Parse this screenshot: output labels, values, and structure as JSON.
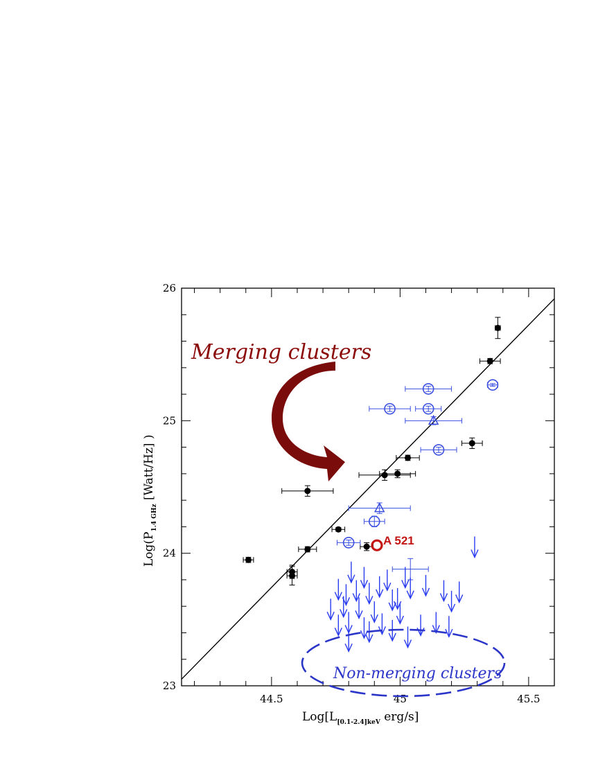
{
  "chart_data": {
    "type": "scatter",
    "xlabel_main": "Log[L",
    "xlabel_sub": "[0.1-2.4]keV",
    "xlabel_tail": " erg/s]",
    "ylabel_main": "Log(P",
    "ylabel_sub": "1.4 GHz",
    "ylabel_tail": " [Watt/Hz] )",
    "xlim": [
      44.15,
      45.6
    ],
    "ylim": [
      23,
      26
    ],
    "xticks": [
      44.5,
      45,
      45.5
    ],
    "xtick_labels": [
      "44.5",
      "45",
      "45.5"
    ],
    "yticks": [
      23,
      24,
      25,
      26
    ],
    "ytick_labels": [
      "23",
      "24",
      "25",
      "26"
    ],
    "fit_line": {
      "x": [
        44.15,
        45.6
      ],
      "y": [
        23.05,
        25.92
      ]
    },
    "annotations": {
      "merging": "Merging clusters",
      "nonmerging": "Non-merging clusters",
      "a521": "A 521"
    },
    "colors": {
      "halo": "#000000",
      "relic": "#3a4fe0",
      "upper_limit": "#2a3cf0",
      "merging_text": "#8b0a0a",
      "arrow": "#7a0c0c",
      "a521": "#c41414"
    },
    "series": [
      {
        "marker": "filled-circle",
        "points": [
          {
            "x": 44.41,
            "y": 23.95,
            "xerr": 0.02,
            "yerr": 0.02
          },
          {
            "x": 44.58,
            "y": 23.86,
            "xerr": 0.02,
            "yerr": 0.05
          },
          {
            "x": 44.58,
            "y": 23.83,
            "xerr": 0.02,
            "yerr": 0.07
          },
          {
            "x": 44.64,
            "y": 24.03,
            "xerr": 0.035,
            "yerr": 0.02
          },
          {
            "x": 44.64,
            "y": 24.47,
            "xerr": 0.1,
            "yerr": 0.04
          },
          {
            "x": 44.76,
            "y": 24.18,
            "xerr": 0.025,
            "yerr": 0.015
          },
          {
            "x": 44.87,
            "y": 24.05,
            "xerr": 0.025,
            "yerr": 0.03
          },
          {
            "x": 44.94,
            "y": 24.59,
            "xerr": 0.1,
            "yerr": 0.04
          },
          {
            "x": 44.99,
            "y": 24.6,
            "xerr": 0.07,
            "yerr": 0.03
          },
          {
            "x": 45.03,
            "y": 24.72,
            "xerr": 0.045,
            "yerr": 0.02
          },
          {
            "x": 45.28,
            "y": 24.83,
            "xerr": 0.04,
            "yerr": 0.04
          },
          {
            "x": 45.35,
            "y": 25.45,
            "xerr": 0.04,
            "yerr": 0.02
          },
          {
            "x": 45.38,
            "y": 25.7,
            "xerr": 0.01,
            "yerr": 0.08
          }
        ]
      },
      {
        "marker": "open-circle",
        "points": [
          {
            "x": 44.96,
            "y": 25.09,
            "xerr": 0.08,
            "yerr": 0.02
          },
          {
            "x": 45.11,
            "y": 25.24,
            "xerr": 0.09,
            "yerr": 0.02
          },
          {
            "x": 45.11,
            "y": 25.09,
            "xerr": 0.05,
            "yerr": 0.02
          },
          {
            "x": 45.15,
            "y": 24.78,
            "xerr": 0.07,
            "yerr": 0.02
          },
          {
            "x": 44.9,
            "y": 24.24,
            "xerr": 0.04,
            "yerr": 0.04
          },
          {
            "x": 44.8,
            "y": 24.08,
            "xerr": 0.045,
            "yerr": 0.02
          },
          {
            "x": 45.36,
            "y": 25.27,
            "xerr": 0.02,
            "yerr": 0.01
          }
        ]
      },
      {
        "marker": "open-triangle",
        "points": [
          {
            "x": 45.13,
            "y": 25.0,
            "xerr": 0.11,
            "yerr": 0.03
          },
          {
            "x": 44.92,
            "y": 24.34,
            "xerr": 0.12,
            "yerr": 0.04
          }
        ]
      },
      {
        "marker": "cross",
        "points": [
          {
            "x": 45.04,
            "y": 23.88,
            "xerr": 0.07,
            "yerr": 0.08
          }
        ]
      },
      {
        "marker": "upper-limit",
        "points": [
          {
            "x": 45.29,
            "y": 23.97
          },
          {
            "x": 44.81,
            "y": 23.78
          },
          {
            "x": 44.86,
            "y": 23.74
          },
          {
            "x": 45.02,
            "y": 23.74
          },
          {
            "x": 44.95,
            "y": 23.72
          },
          {
            "x": 45.1,
            "y": 23.68
          },
          {
            "x": 44.92,
            "y": 23.67
          },
          {
            "x": 44.76,
            "y": 23.65
          },
          {
            "x": 45.04,
            "y": 23.66
          },
          {
            "x": 45.23,
            "y": 23.63
          },
          {
            "x": 44.88,
            "y": 23.62
          },
          {
            "x": 44.83,
            "y": 23.64
          },
          {
            "x": 45.17,
            "y": 23.64
          },
          {
            "x": 44.79,
            "y": 23.61
          },
          {
            "x": 44.99,
            "y": 23.58
          },
          {
            "x": 44.97,
            "y": 23.57
          },
          {
            "x": 45.2,
            "y": 23.56
          },
          {
            "x": 44.78,
            "y": 23.52
          },
          {
            "x": 44.84,
            "y": 23.51
          },
          {
            "x": 44.9,
            "y": 23.48
          },
          {
            "x": 45.0,
            "y": 23.47
          },
          {
            "x": 44.73,
            "y": 23.5
          },
          {
            "x": 45.08,
            "y": 23.38
          },
          {
            "x": 44.8,
            "y": 23.4
          },
          {
            "x": 44.93,
            "y": 23.39
          },
          {
            "x": 45.14,
            "y": 23.4
          },
          {
            "x": 45.19,
            "y": 23.37
          },
          {
            "x": 44.76,
            "y": 23.38
          },
          {
            "x": 44.86,
            "y": 23.36
          },
          {
            "x": 44.88,
            "y": 23.33
          },
          {
            "x": 44.97,
            "y": 23.34
          },
          {
            "x": 45.03,
            "y": 23.29
          },
          {
            "x": 44.8,
            "y": 23.26
          }
        ]
      },
      {
        "marker": "highlight-circle",
        "points": [
          {
            "x": 44.91,
            "y": 24.06
          }
        ]
      }
    ]
  }
}
